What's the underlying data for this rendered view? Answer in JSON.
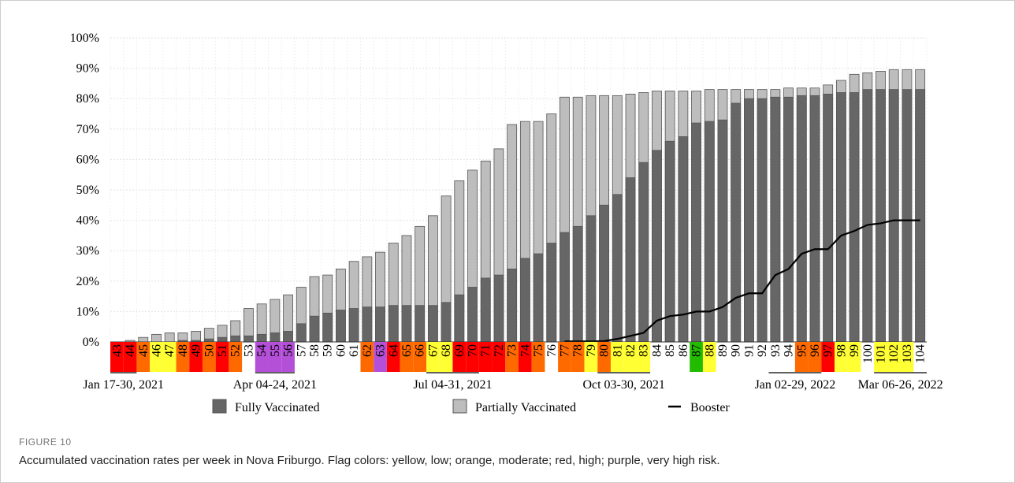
{
  "chart_data": {
    "type": "bar",
    "categories": [
      "43",
      "44",
      "45",
      "46",
      "47",
      "48",
      "49",
      "50",
      "51",
      "52",
      "53",
      "54",
      "55",
      "56",
      "57",
      "58",
      "59",
      "60",
      "61",
      "62",
      "63",
      "64",
      "65",
      "66",
      "67",
      "68",
      "69",
      "70",
      "71",
      "72",
      "73",
      "74",
      "75",
      "76",
      "77",
      "78",
      "79",
      "80",
      "81",
      "82",
      "83",
      "84",
      "85",
      "86",
      "87",
      "88",
      "89",
      "90",
      "91",
      "92",
      "93",
      "94",
      "95",
      "96",
      "97",
      "98",
      "99",
      "100",
      "101",
      "102",
      "103",
      "104"
    ],
    "flags": [
      "#ff0000",
      "#ff0000",
      "#ff6a00",
      "#ffff33",
      "#ffff33",
      "#ff6a00",
      "#ff0000",
      "#ff6a00",
      "#ff0000",
      "#ff6a00",
      null,
      "#b450d8",
      "#b450d8",
      "#b450d8",
      null,
      null,
      null,
      null,
      null,
      "#ff6a00",
      "#b450d8",
      "#ff0000",
      "#ff6a00",
      "#ff6a00",
      "#ffff33",
      "#ffff33",
      "#ff0000",
      "#ff0000",
      "#ff0000",
      "#ff0000",
      "#ff6a00",
      "#ff0000",
      "#ff6a00",
      null,
      "#ff6a00",
      "#ff6a00",
      "#ffff33",
      "#ff6a00",
      "#ffff33",
      "#ffff33",
      "#ffff33",
      null,
      null,
      null,
      "#22bb00",
      "#ffff33",
      null,
      null,
      null,
      null,
      null,
      null,
      "#ff6a00",
      "#ff6a00",
      "#ff0000",
      "#ffff33",
      "#ffff33",
      null,
      "#ffff33",
      "#ffff33",
      "#ffff33",
      null
    ],
    "series": [
      {
        "name": "Partially Vaccinated",
        "color": "#bdbdbd",
        "kind": "bar",
        "values": [
          0,
          0.5,
          1.5,
          2.5,
          3,
          3,
          3.5,
          4.5,
          5.5,
          7,
          11,
          12.5,
          14,
          15.5,
          18,
          21.5,
          22,
          24,
          26.5,
          28,
          29.5,
          32.5,
          35,
          38,
          41.5,
          48,
          53,
          56.5,
          59.5,
          63.5,
          71.5,
          72.5,
          72.5,
          75,
          80.5,
          80.5,
          81,
          81,
          81,
          81.5,
          82,
          82.5,
          82.5,
          82.5,
          82.5,
          83,
          83,
          83,
          83,
          83,
          83,
          83.5,
          83.5,
          83.5,
          84.5,
          86,
          88,
          88.5,
          89,
          89.5,
          89.5,
          89.5
        ]
      },
      {
        "name": "Fully Vaccinated",
        "color": "#666666",
        "kind": "bar",
        "values": [
          0,
          0,
          0,
          0,
          0,
          0.5,
          0.5,
          1,
          1.5,
          2,
          2,
          2.5,
          3,
          3.5,
          6,
          8.5,
          9.5,
          10.5,
          11,
          11.5,
          11.5,
          12,
          12,
          12,
          12,
          13,
          15.5,
          18,
          21,
          22,
          24,
          27.5,
          29,
          32.5,
          36,
          38,
          41.5,
          45,
          48.5,
          54,
          59,
          63,
          66,
          67.5,
          72,
          72.5,
          73,
          78.5,
          80,
          80,
          80.5,
          80.5,
          81,
          81,
          81.5,
          82,
          82,
          83,
          83,
          83,
          83,
          83
        ]
      },
      {
        "name": "Booster",
        "color": "#000000",
        "kind": "line",
        "values": [
          null,
          null,
          null,
          null,
          null,
          null,
          null,
          null,
          null,
          null,
          null,
          null,
          null,
          null,
          null,
          null,
          null,
          null,
          null,
          null,
          null,
          null,
          null,
          null,
          null,
          null,
          null,
          null,
          null,
          null,
          null,
          null,
          null,
          null,
          0.2,
          0.2,
          0.2,
          0.3,
          1,
          2,
          3,
          7,
          8.5,
          9,
          10,
          10,
          11.5,
          14.5,
          16,
          16,
          22,
          24,
          29,
          30.5,
          30.5,
          35,
          36.5,
          38.5,
          39,
          40,
          40,
          40
        ]
      }
    ],
    "periods": [
      {
        "label": "Jan 17-30, 2021",
        "from": "43",
        "to": "44"
      },
      {
        "label": "Apr 04-24, 2021",
        "from": "54",
        "to": "56"
      },
      {
        "label": "Jul 04-31, 2021",
        "from": "67",
        "to": "70"
      },
      {
        "label": "Oct 03-30, 2021",
        "from": "80",
        "to": "83"
      },
      {
        "label": "Jan 02-29, 2022",
        "from": "93",
        "to": "96"
      },
      {
        "label": "Mar 06-26, 2022",
        "from": "101",
        "to": "104"
      }
    ],
    "ylim": [
      0,
      100
    ],
    "yticks": [
      {
        "value": 0,
        "label": "0%"
      },
      {
        "value": 10,
        "label": "10%"
      },
      {
        "value": 20,
        "label": "20%"
      },
      {
        "value": 30,
        "label": "30%"
      },
      {
        "value": 40,
        "label": "40%"
      },
      {
        "value": 50,
        "label": "50%"
      },
      {
        "value": 60,
        "label": "60%"
      },
      {
        "value": 70,
        "label": "70%"
      },
      {
        "value": 80,
        "label": "80%"
      },
      {
        "value": 90,
        "label": "90%"
      },
      {
        "value": 100,
        "label": "100%"
      }
    ],
    "grid": true
  },
  "figure": {
    "label": "FIGURE 10",
    "caption": "Accumulated vaccination rates per week in Nova Friburgo. Flag colors: yellow, low; orange, moderate; red, high; purple, very high risk."
  }
}
